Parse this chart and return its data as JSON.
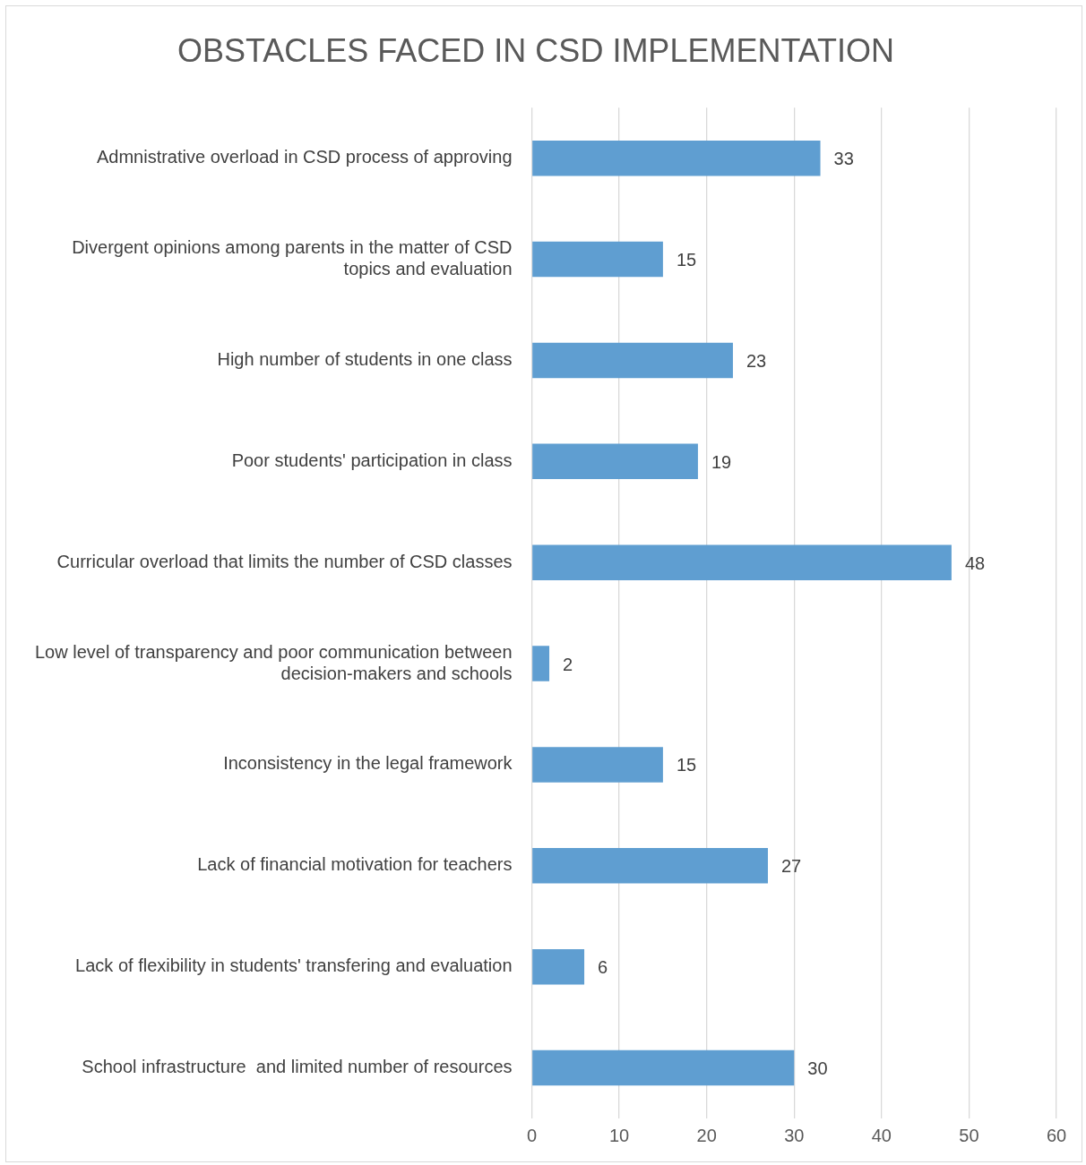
{
  "chart_data": {
    "type": "bar",
    "orientation": "horizontal",
    "title": "OBSTACLES FACED IN CSD IMPLEMENTATION",
    "categories": [
      "Admnistrative overload in CSD process of approving",
      "Divergent opinions among parents in the matter of CSD topics and evaluation",
      "High number of students in one class",
      "Poor students' participation in class",
      "Curricular overload that limits the number of CSD classes",
      "Low level of transparency and poor communication between decision-makers and schools",
      "Inconsistency in the legal framework",
      "Lack of financial motivation for teachers",
      "Lack of flexibility in students' transfering and evaluation",
      "School infrastructure  and limited number of resources"
    ],
    "values": [
      33,
      15,
      23,
      19,
      48,
      2,
      15,
      27,
      6,
      30
    ],
    "color": "#5f9ed1",
    "xlim": [
      0,
      60
    ],
    "xticks": [
      0,
      10,
      20,
      30,
      40,
      50,
      60
    ],
    "grid": "x",
    "data_labels": true,
    "legend": false
  }
}
